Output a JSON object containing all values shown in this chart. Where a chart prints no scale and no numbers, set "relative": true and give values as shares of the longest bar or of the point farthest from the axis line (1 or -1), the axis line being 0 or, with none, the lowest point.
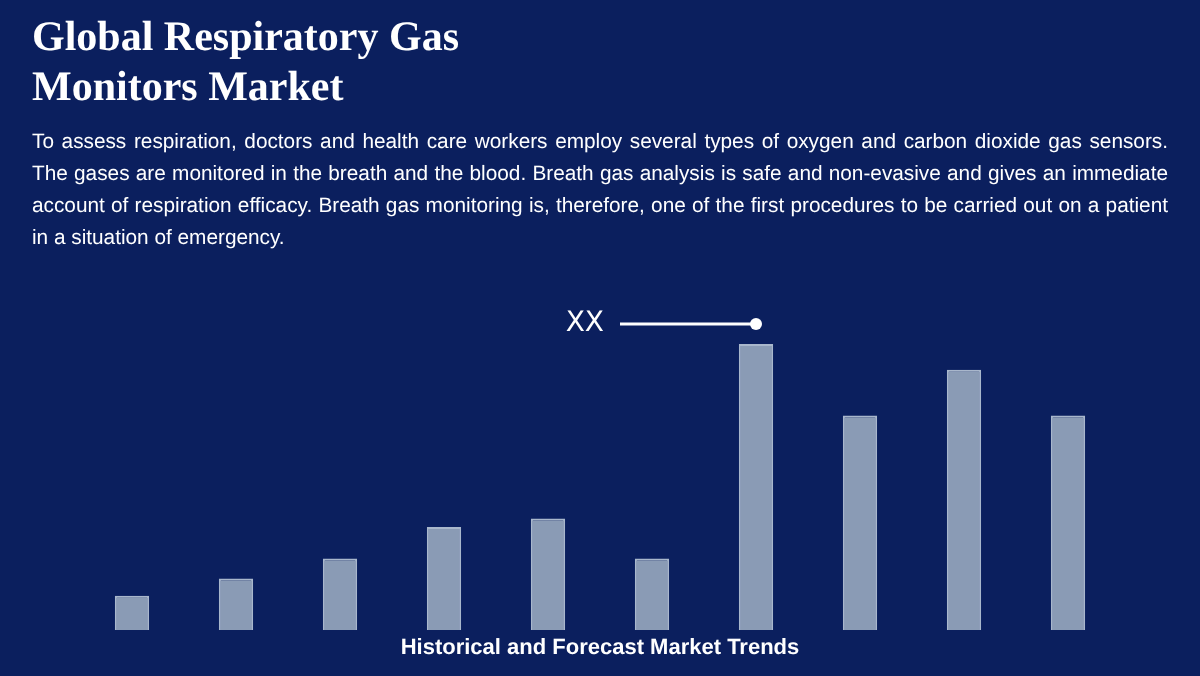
{
  "chart_data": {
    "type": "bar",
    "title": "Global Respiratory Gas Monitors Market",
    "subtitle": "To assess respiration, doctors and health care workers employ several types of oxygen and carbon dioxide gas sensors. The gases are monitored in the breath and the blood. Breath gas analysis is safe and non-evasive and gives an immediate account of respiration efficacy. Breath gas monitoring is, therefore, one of the first procedures to be carried out on a patient in a situation of emergency.",
    "xlabel": "Historical and Forecast Market Trends",
    "relative": true,
    "categories": [
      null,
      null,
      null,
      null,
      null,
      null,
      null,
      null,
      null,
      null
    ],
    "values": [
      0.12,
      0.18,
      0.25,
      0.36,
      0.39,
      0.25,
      1,
      0.75,
      0.91,
      0.75
    ],
    "color": "#8a9bb5",
    "annotations": [
      "XX"
    ]
  }
}
